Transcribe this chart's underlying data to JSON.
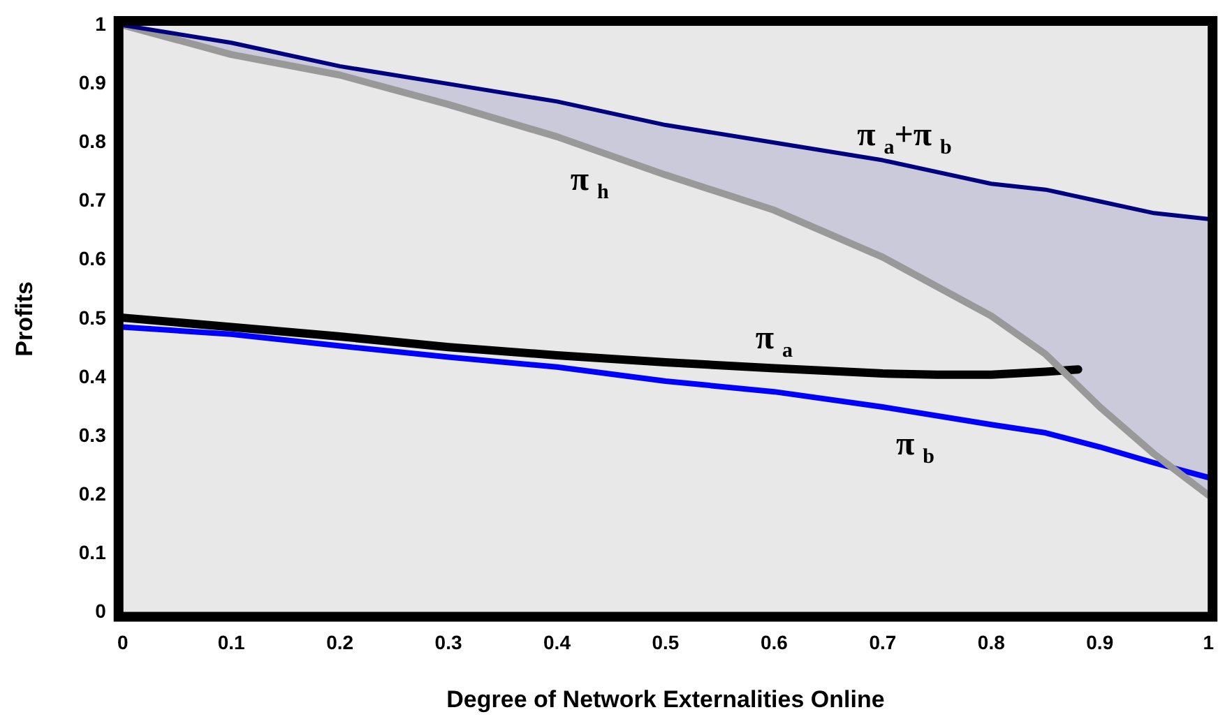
{
  "chart_data": {
    "type": "line",
    "xlabel": "Degree of Network Externalities Online",
    "ylabel": "Profits",
    "x": [
      0,
      0.1,
      0.2,
      0.3,
      0.4,
      0.5,
      0.6,
      0.7,
      0.8,
      0.85,
      0.9,
      0.95,
      1
    ],
    "series": [
      {
        "name": "π $_{a}$+π $_{b}$",
        "color": "#000080",
        "values": [
          1,
          0.97,
          0.93,
          0.9,
          0.87,
          0.83,
          0.8,
          0.77,
          0.73,
          0.72,
          0.7,
          0.68,
          0.67
        ],
        "lower": [
          1,
          0.95,
          0.915,
          0.865,
          0.81,
          0.745,
          0.685,
          0.605,
          0.505,
          0.44,
          0.35,
          0.27,
          0.2
        ],
        "upper": [
          1,
          0.97,
          0.93,
          0.9,
          0.87,
          0.83,
          0.8,
          0.77,
          0.73,
          0.72,
          0.7,
          0.68,
          0.67
        ]
      },
      {
        "name": "π $_{h}$",
        "color": "#999999",
        "values": [
          1,
          0.95,
          0.915,
          0.865,
          0.81,
          0.745,
          0.685,
          0.605,
          0.505,
          0.44,
          0.35,
          0.27,
          0.2
        ]
      },
      {
        "name": "π $_{a}$",
        "color": "#000000",
        "x": [
          0,
          0.1,
          0.2,
          0.3,
          0.4,
          0.5,
          0.6,
          0.7,
          0.75,
          0.8,
          0.85,
          0.88
        ],
        "values": [
          0.502,
          0.486,
          0.47,
          0.452,
          0.438,
          0.426,
          0.416,
          0.407,
          0.405,
          0.405,
          0.41,
          0.414
        ]
      },
      {
        "name": "π $_{b}$",
        "color": "#0000ff",
        "values": [
          0.486,
          0.474,
          0.454,
          0.435,
          0.418,
          0.394,
          0.376,
          0.35,
          0.32,
          0.306,
          0.282,
          0.255,
          0.23
        ]
      }
    ],
    "xlim": [
      0,
      1
    ],
    "xticks": [
      0,
      0.1,
      0.2,
      0.3,
      0.4,
      0.5,
      0.6,
      0.7,
      0.8,
      0.9,
      1
    ],
    "ylim": [
      0,
      1
    ],
    "yticks": [
      0,
      0.1,
      0.2,
      0.3,
      0.4,
      0.5,
      0.6,
      0.7,
      0.8,
      0.9,
      1
    ],
    "legend": false,
    "marker": "none",
    "line_style": "solid"
  }
}
